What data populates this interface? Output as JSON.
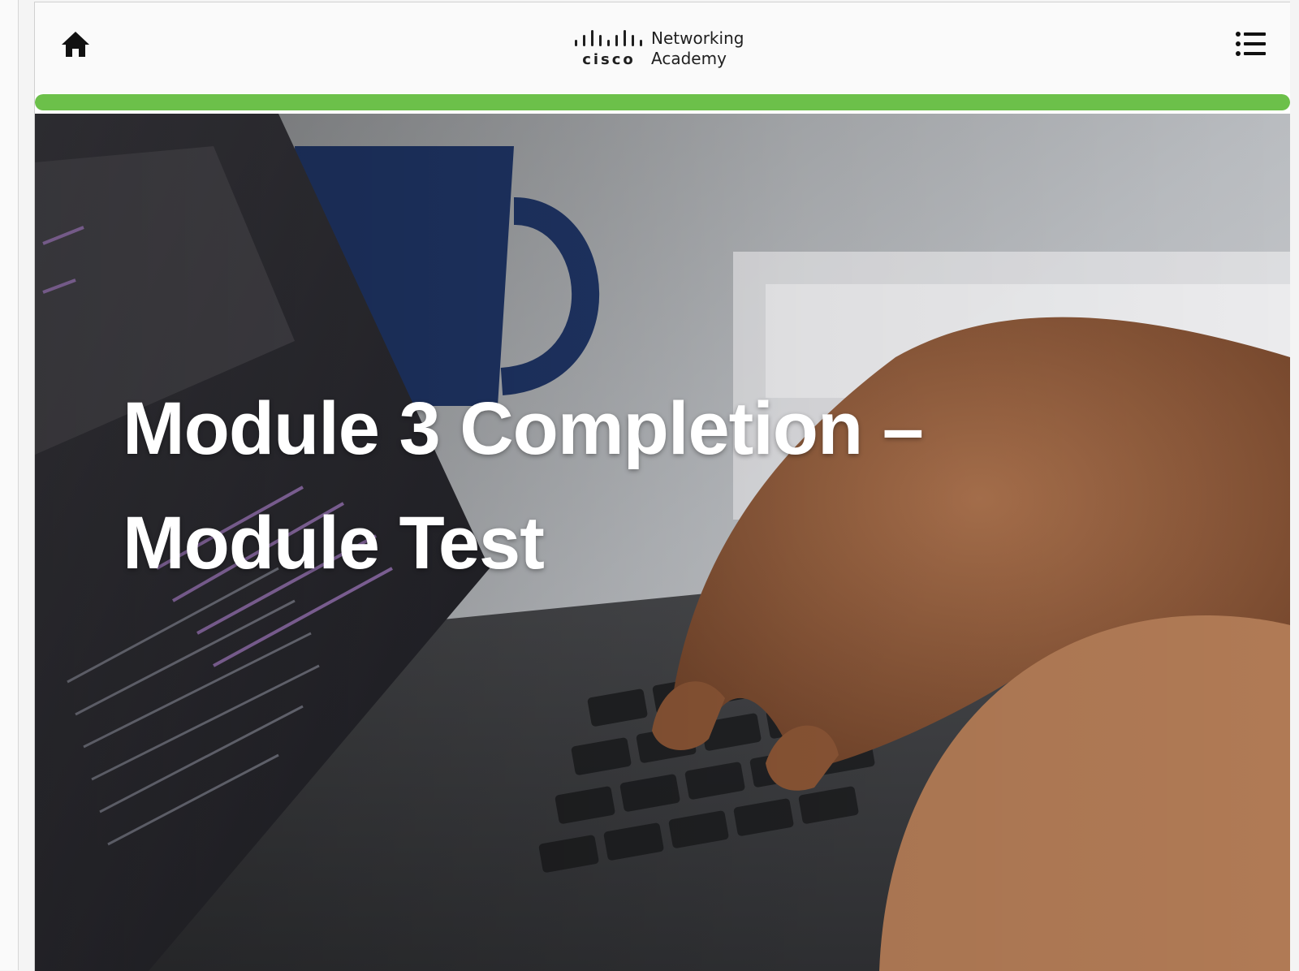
{
  "header": {
    "home_icon": "home-icon",
    "menu_icon": "list-menu-icon",
    "logo": {
      "brand": "cisco",
      "line1": "Networking",
      "line2": "Academy"
    }
  },
  "progress": {
    "fraction": 1.0,
    "color": "#6cc04a"
  },
  "hero": {
    "title": "Module 3 Completion – Module Test"
  },
  "colors": {
    "accent": "#6cc04a",
    "title_text": "#ffffff"
  }
}
